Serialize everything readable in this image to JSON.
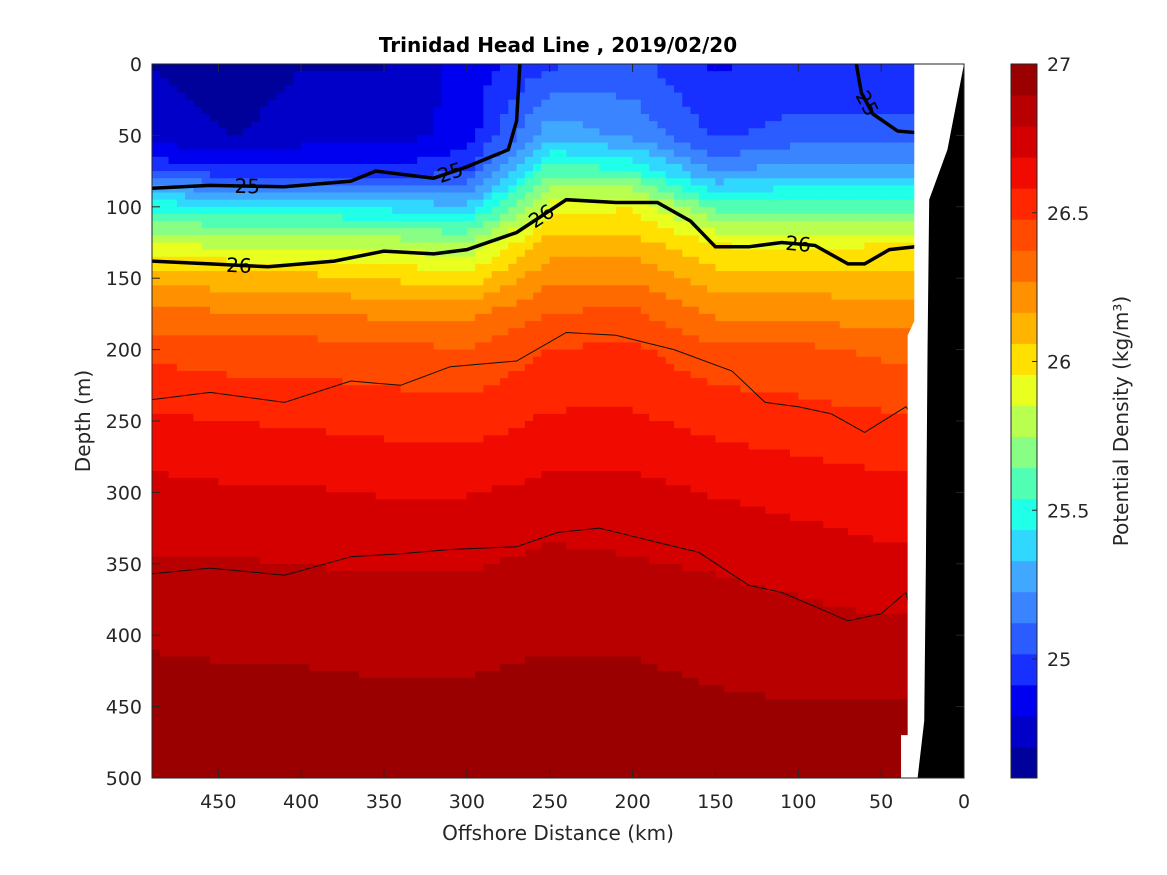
{
  "chart_data": {
    "type": "heatmap",
    "title": "Trinidad Head Line , 2019/02/20",
    "xlabel": "Offshore Distance (km)",
    "ylabel": "Depth (m)",
    "colorbar_label": "Potential Density (kg/m³)",
    "xlim": [
      490,
      0
    ],
    "ylim": [
      0,
      500
    ],
    "clim": [
      24.6,
      27.0
    ],
    "x_ticks": [
      450,
      400,
      350,
      300,
      250,
      200,
      150,
      100,
      50,
      0
    ],
    "y_ticks": [
      0,
      50,
      100,
      150,
      200,
      250,
      300,
      350,
      400,
      450,
      500
    ],
    "colorbar_ticks": [
      25,
      25.5,
      26,
      26.5,
      27
    ],
    "colorbar_tick_labels": [
      "25",
      "25.5",
      "26",
      "26.5",
      "27"
    ],
    "colormap": [
      "#00009a",
      "#0000c8",
      "#0000f0",
      "#1830ff",
      "#2a5cff",
      "#3a84ff",
      "#40a8ff",
      "#30d8ff",
      "#20ffe8",
      "#50ffb4",
      "#88ff84",
      "#b8ff50",
      "#e8ff20",
      "#ffe000",
      "#ffb400",
      "#ff9000",
      "#ff6a00",
      "#ff4a00",
      "#ff2600",
      "#f00a00",
      "#d40000",
      "#b80000",
      "#9a0000"
    ],
    "depth_levels": [
      0,
      50,
      75,
      100,
      125,
      150,
      175,
      200,
      250,
      300,
      350,
      400,
      450,
      500
    ],
    "stations": [
      {
        "x": 490,
        "density": [
          24.7,
          24.75,
          25.0,
          25.5,
          25.85,
          26.15,
          26.3,
          26.45,
          26.6,
          26.72,
          26.8,
          26.88,
          26.95,
          27.0
        ]
      },
      {
        "x": 440,
        "density": [
          24.65,
          24.7,
          24.95,
          25.45,
          25.8,
          26.1,
          26.28,
          26.42,
          26.58,
          26.7,
          26.8,
          26.87,
          26.93,
          26.98
        ]
      },
      {
        "x": 400,
        "density": [
          24.7,
          24.75,
          24.95,
          25.45,
          25.8,
          26.1,
          26.28,
          26.42,
          26.57,
          26.7,
          26.79,
          26.87,
          26.93,
          26.98
        ]
      },
      {
        "x": 350,
        "density": [
          24.7,
          24.75,
          24.95,
          25.4,
          25.8,
          26.05,
          26.25,
          26.4,
          26.55,
          26.68,
          26.78,
          26.86,
          26.92,
          26.98
        ]
      },
      {
        "x": 300,
        "density": [
          24.85,
          24.85,
          25.0,
          25.35,
          25.75,
          26.0,
          26.25,
          26.38,
          26.53,
          26.68,
          26.78,
          26.86,
          26.92,
          26.97
        ]
      },
      {
        "x": 250,
        "density": [
          25.0,
          25.3,
          25.6,
          25.9,
          26.1,
          26.25,
          26.38,
          26.48,
          26.6,
          26.72,
          26.82,
          26.88,
          26.94,
          26.99
        ]
      },
      {
        "x": 200,
        "density": [
          25.05,
          25.2,
          25.55,
          25.95,
          26.1,
          26.25,
          26.4,
          26.5,
          26.6,
          26.72,
          26.8,
          26.88,
          26.93,
          26.98
        ]
      },
      {
        "x": 150,
        "density": [
          24.9,
          25.0,
          25.2,
          25.6,
          25.95,
          26.1,
          26.25,
          26.4,
          26.55,
          26.68,
          26.78,
          26.86,
          26.91,
          26.97
        ]
      },
      {
        "x": 100,
        "density": [
          24.95,
          25.05,
          25.3,
          25.6,
          25.9,
          26.1,
          26.25,
          26.4,
          26.52,
          26.65,
          26.75,
          26.84,
          26.9,
          26.96
        ]
      },
      {
        "x": 50,
        "density": [
          24.95,
          25.05,
          25.3,
          25.6,
          25.95,
          26.1,
          26.2,
          26.35,
          26.5,
          26.62,
          26.72,
          26.82,
          26.9,
          26.96
        ]
      },
      {
        "x": 22,
        "density": [
          24.95,
          25.05,
          25.3,
          25.6,
          25.95,
          26.1,
          26.2,
          26.35,
          26.5,
          26.62,
          26.72,
          26.82,
          26.9,
          26.96
        ]
      }
    ],
    "bold_contours": [
      {
        "level": 25,
        "label": "25",
        "points": [
          [
            490,
            87
          ],
          [
            455,
            85
          ],
          [
            410,
            86
          ],
          [
            370,
            82
          ],
          [
            355,
            75
          ],
          [
            320,
            80
          ],
          [
            300,
            72
          ],
          [
            275,
            60
          ],
          [
            270,
            40
          ],
          [
            268,
            0
          ]
        ]
      },
      {
        "level": 26,
        "label": "26",
        "points": [
          [
            490,
            138
          ],
          [
            455,
            140
          ],
          [
            420,
            142
          ],
          [
            380,
            138
          ],
          [
            350,
            131
          ],
          [
            320,
            133
          ],
          [
            300,
            130
          ],
          [
            270,
            118
          ],
          [
            240,
            95
          ],
          [
            210,
            97
          ],
          [
            185,
            97
          ],
          [
            165,
            110
          ],
          [
            150,
            128
          ],
          [
            130,
            128
          ],
          [
            110,
            125
          ],
          [
            90,
            127
          ],
          [
            70,
            140
          ],
          [
            60,
            140
          ],
          [
            45,
            130
          ],
          [
            22,
            127
          ]
        ]
      },
      {
        "level": 25,
        "label": "25",
        "points": [
          [
            65,
            0
          ],
          [
            62,
            20
          ],
          [
            55,
            35
          ],
          [
            40,
            47
          ],
          [
            30,
            48
          ],
          [
            22,
            47
          ]
        ]
      }
    ],
    "thin_contours": [
      [
        [
          490,
          235
        ],
        [
          455,
          230
        ],
        [
          410,
          237
        ],
        [
          370,
          222
        ],
        [
          340,
          225
        ],
        [
          310,
          212
        ],
        [
          270,
          208
        ],
        [
          240,
          188
        ],
        [
          210,
          190
        ],
        [
          175,
          200
        ],
        [
          140,
          215
        ],
        [
          120,
          237
        ],
        [
          100,
          240
        ],
        [
          80,
          245
        ],
        [
          60,
          258
        ],
        [
          35,
          240
        ],
        [
          32,
          245
        ]
      ],
      [
        [
          490,
          357
        ],
        [
          455,
          353
        ],
        [
          410,
          358
        ],
        [
          370,
          345
        ],
        [
          340,
          343
        ],
        [
          310,
          340
        ],
        [
          270,
          338
        ],
        [
          245,
          328
        ],
        [
          220,
          325
        ],
        [
          185,
          335
        ],
        [
          160,
          342
        ],
        [
          130,
          365
        ],
        [
          110,
          370
        ],
        [
          90,
          380
        ],
        [
          70,
          390
        ],
        [
          50,
          385
        ],
        [
          35,
          370
        ],
        [
          30,
          395
        ]
      ]
    ],
    "coast_bottom": [
      [
        28,
        500
      ],
      [
        24,
        460
      ],
      [
        23,
        350
      ],
      [
        22,
        200
      ],
      [
        21,
        95
      ],
      [
        10,
        60
      ],
      [
        0,
        0
      ],
      [
        0,
        500
      ]
    ]
  }
}
